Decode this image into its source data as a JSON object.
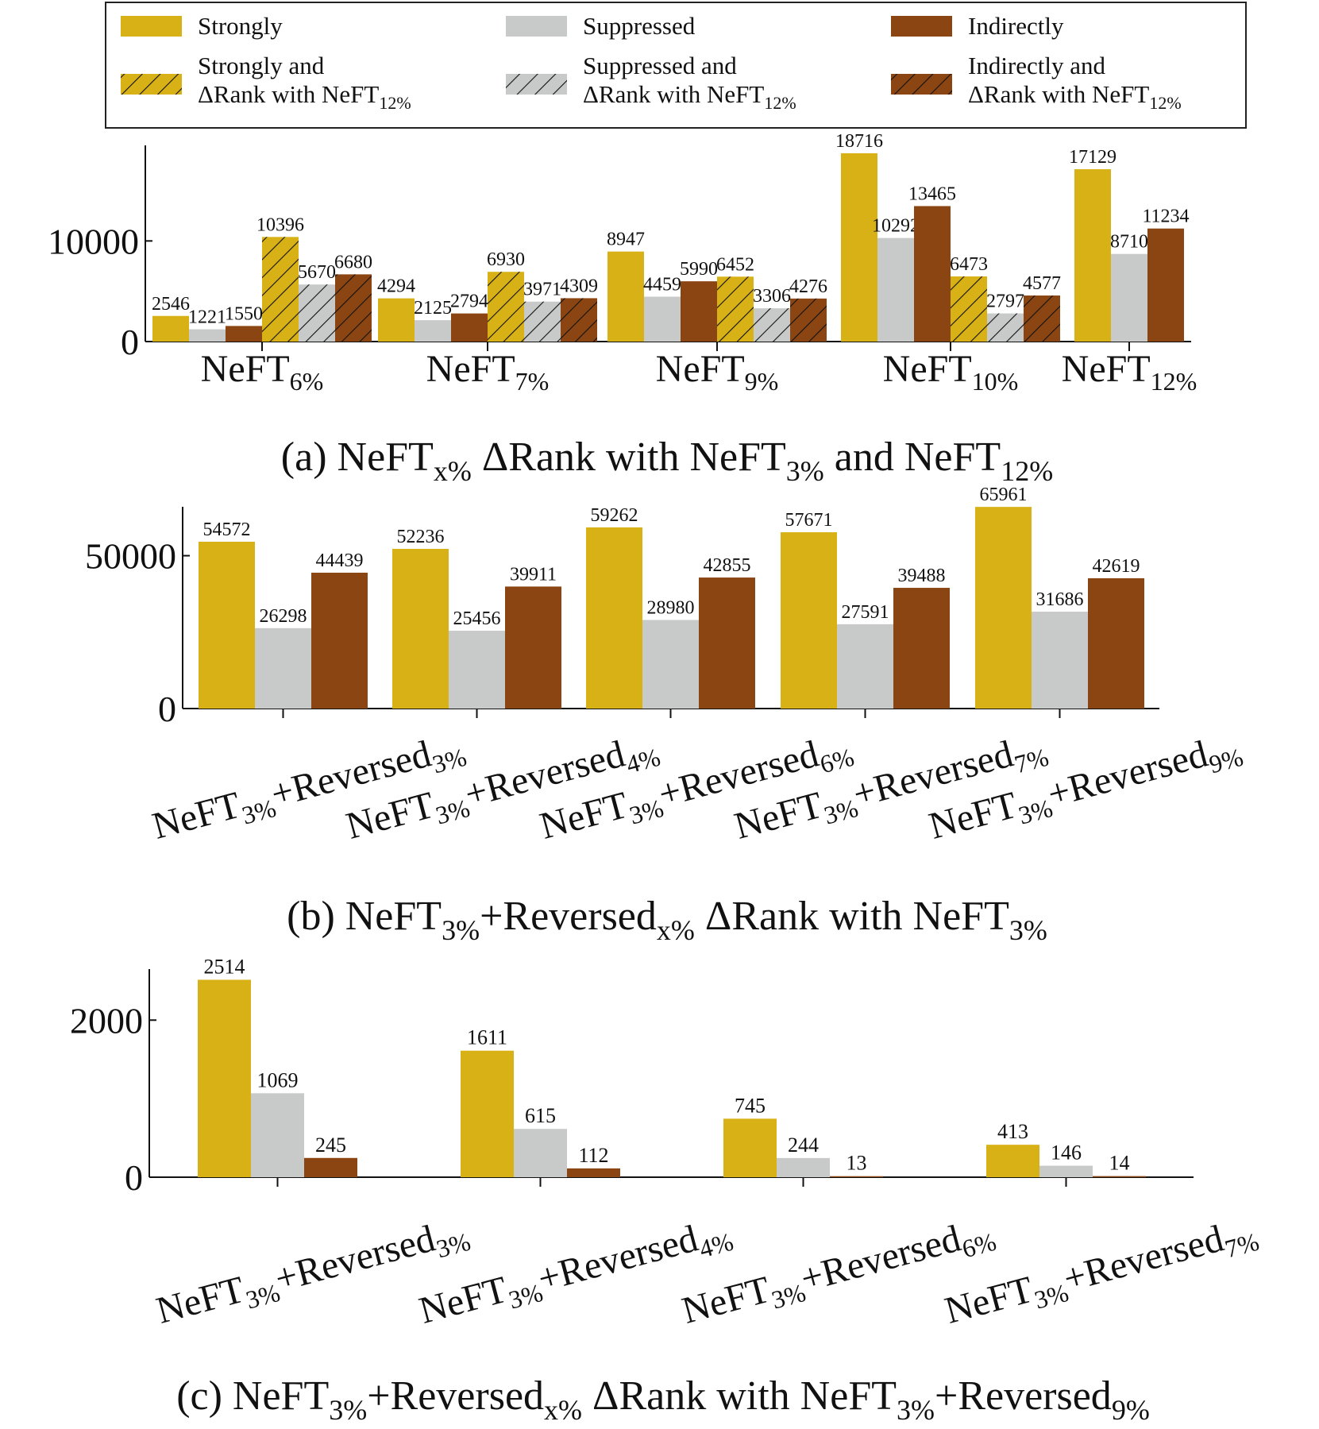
{
  "colors": {
    "strongly": "#D8B116",
    "suppressed": "#C8CACA",
    "indirectly": "#8B4513"
  },
  "legend": {
    "items": [
      {
        "key": "strongly",
        "lines": [
          "Strongly"
        ],
        "sub": "",
        "hatched": false
      },
      {
        "key": "suppressed",
        "lines": [
          "Suppressed"
        ],
        "sub": "",
        "hatched": false
      },
      {
        "key": "indirectly",
        "lines": [
          "Indirectly"
        ],
        "sub": "",
        "hatched": false
      },
      {
        "key": "strongly",
        "lines": [
          "Strongly and",
          "ΔRank with NeFT"
        ],
        "sub": "12%",
        "hatched": true
      },
      {
        "key": "suppressed",
        "lines": [
          "Suppressed and",
          "ΔRank with NeFT"
        ],
        "sub": "12%",
        "hatched": true
      },
      {
        "key": "indirectly",
        "lines": [
          "Indirectly and",
          "ΔRank with NeFT"
        ],
        "sub": "12%",
        "hatched": true
      }
    ]
  },
  "chart_data": [
    {
      "type": "bar",
      "caption": {
        "parts": [
          [
            "(a) NeFT",
            ""
          ],
          [
            "x%",
            "sub"
          ],
          [
            " ΔRank with NeFT",
            ""
          ],
          [
            "3%",
            "sub"
          ],
          [
            " and NeFT",
            ""
          ],
          [
            "12%",
            "sub"
          ]
        ]
      },
      "ylim": [
        0,
        19500
      ],
      "yticks": [
        0,
        10000
      ],
      "groups": [
        {
          "base": "NeFT",
          "sub": "6%",
          "bars": [
            {
              "key": "strongly",
              "value": 2546,
              "hatched": false
            },
            {
              "key": "suppressed",
              "value": 1221,
              "hatched": false
            },
            {
              "key": "indirectly",
              "value": 1550,
              "hatched": false
            },
            {
              "key": "strongly",
              "value": 10396,
              "hatched": true
            },
            {
              "key": "suppressed",
              "value": 5670,
              "hatched": true
            },
            {
              "key": "indirectly",
              "value": 6680,
              "hatched": true
            }
          ]
        },
        {
          "base": "NeFT",
          "sub": "7%",
          "bars": [
            {
              "key": "strongly",
              "value": 4294,
              "hatched": false
            },
            {
              "key": "suppressed",
              "value": 2125,
              "hatched": false
            },
            {
              "key": "indirectly",
              "value": 2794,
              "hatched": false
            },
            {
              "key": "strongly",
              "value": 6930,
              "hatched": true
            },
            {
              "key": "suppressed",
              "value": 3971,
              "hatched": true
            },
            {
              "key": "indirectly",
              "value": 4309,
              "hatched": true
            }
          ]
        },
        {
          "base": "NeFT",
          "sub": "9%",
          "bars": [
            {
              "key": "strongly",
              "value": 8947,
              "hatched": false
            },
            {
              "key": "suppressed",
              "value": 4459,
              "hatched": false
            },
            {
              "key": "indirectly",
              "value": 5990,
              "hatched": false
            },
            {
              "key": "strongly",
              "value": 6452,
              "hatched": true
            },
            {
              "key": "suppressed",
              "value": 3306,
              "hatched": true
            },
            {
              "key": "indirectly",
              "value": 4276,
              "hatched": true
            }
          ]
        },
        {
          "base": "NeFT",
          "sub": "10%",
          "bars": [
            {
              "key": "strongly",
              "value": 18716,
              "hatched": false
            },
            {
              "key": "suppressed",
              "value": 10292,
              "hatched": false
            },
            {
              "key": "indirectly",
              "value": 13465,
              "hatched": false
            },
            {
              "key": "strongly",
              "value": 6473,
              "hatched": true
            },
            {
              "key": "suppressed",
              "value": 2797,
              "hatched": true
            },
            {
              "key": "indirectly",
              "value": 4577,
              "hatched": true
            }
          ]
        },
        {
          "base": "NeFT",
          "sub": "12%",
          "bars": [
            {
              "key": "strongly",
              "value": 17129,
              "hatched": false
            },
            {
              "key": "suppressed",
              "value": 8710,
              "hatched": false
            },
            {
              "key": "indirectly",
              "value": 11234,
              "hatched": false
            }
          ]
        }
      ]
    },
    {
      "type": "bar",
      "caption": {
        "parts": [
          [
            "(b) NeFT",
            ""
          ],
          [
            "3%",
            "sub"
          ],
          [
            "+Reversed",
            ""
          ],
          [
            "x%",
            "sub"
          ],
          [
            " ΔRank with NeFT",
            ""
          ],
          [
            "3%",
            "sub"
          ]
        ]
      },
      "ylim": [
        0,
        66000
      ],
      "yticks": [
        0,
        50000
      ],
      "groups": [
        {
          "parts": [
            [
              "NeFT",
              ""
            ],
            [
              "3%",
              "sub"
            ],
            [
              "+Reversed",
              ""
            ],
            [
              "3%",
              "sub"
            ]
          ],
          "bars": [
            {
              "key": "strongly",
              "value": 54572
            },
            {
              "key": "suppressed",
              "value": 26298
            },
            {
              "key": "indirectly",
              "value": 44439
            }
          ]
        },
        {
          "parts": [
            [
              "NeFT",
              ""
            ],
            [
              "3%",
              "sub"
            ],
            [
              "+Reversed",
              ""
            ],
            [
              "4%",
              "sub"
            ]
          ],
          "bars": [
            {
              "key": "strongly",
              "value": 52236
            },
            {
              "key": "suppressed",
              "value": 25456
            },
            {
              "key": "indirectly",
              "value": 39911
            }
          ]
        },
        {
          "parts": [
            [
              "NeFT",
              ""
            ],
            [
              "3%",
              "sub"
            ],
            [
              "+Reversed",
              ""
            ],
            [
              "6%",
              "sub"
            ]
          ],
          "bars": [
            {
              "key": "strongly",
              "value": 59262
            },
            {
              "key": "suppressed",
              "value": 28980
            },
            {
              "key": "indirectly",
              "value": 42855
            }
          ]
        },
        {
          "parts": [
            [
              "NeFT",
              ""
            ],
            [
              "3%",
              "sub"
            ],
            [
              "+Reversed",
              ""
            ],
            [
              "7%",
              "sub"
            ]
          ],
          "bars": [
            {
              "key": "strongly",
              "value": 57671
            },
            {
              "key": "suppressed",
              "value": 27591
            },
            {
              "key": "indirectly",
              "value": 39488
            }
          ]
        },
        {
          "parts": [
            [
              "NeFT",
              ""
            ],
            [
              "3%",
              "sub"
            ],
            [
              "+Reversed",
              ""
            ],
            [
              "9%",
              "sub"
            ]
          ],
          "bars": [
            {
              "key": "strongly",
              "value": 65961
            },
            {
              "key": "suppressed",
              "value": 31686
            },
            {
              "key": "indirectly",
              "value": 42619
            }
          ]
        }
      ]
    },
    {
      "type": "bar",
      "caption": {
        "parts": [
          [
            "(c) NeFT",
            ""
          ],
          [
            "3%",
            "sub"
          ],
          [
            "+Reversed",
            ""
          ],
          [
            "x%",
            "sub"
          ],
          [
            " ΔRank with NeFT",
            ""
          ],
          [
            "3%",
            "sub"
          ],
          [
            "+Reversed",
            ""
          ],
          [
            "9%",
            "sub"
          ]
        ]
      },
      "ylim": [
        0,
        2650
      ],
      "yticks": [
        0,
        2000
      ],
      "groups": [
        {
          "parts": [
            [
              "NeFT",
              ""
            ],
            [
              "3%",
              "sub"
            ],
            [
              "+Reversed",
              ""
            ],
            [
              "3%",
              "sub"
            ]
          ],
          "bars": [
            {
              "key": "strongly",
              "value": 2514
            },
            {
              "key": "suppressed",
              "value": 1069
            },
            {
              "key": "indirectly",
              "value": 245
            }
          ]
        },
        {
          "parts": [
            [
              "NeFT",
              ""
            ],
            [
              "3%",
              "sub"
            ],
            [
              "+Reversed",
              ""
            ],
            [
              "4%",
              "sub"
            ]
          ],
          "bars": [
            {
              "key": "strongly",
              "value": 1611
            },
            {
              "key": "suppressed",
              "value": 615
            },
            {
              "key": "indirectly",
              "value": 112
            }
          ]
        },
        {
          "parts": [
            [
              "NeFT",
              ""
            ],
            [
              "3%",
              "sub"
            ],
            [
              "+Reversed",
              ""
            ],
            [
              "6%",
              "sub"
            ]
          ],
          "bars": [
            {
              "key": "strongly",
              "value": 745
            },
            {
              "key": "suppressed",
              "value": 244
            },
            {
              "key": "indirectly",
              "value": 13
            }
          ]
        },
        {
          "parts": [
            [
              "NeFT",
              ""
            ],
            [
              "3%",
              "sub"
            ],
            [
              "+Reversed",
              ""
            ],
            [
              "7%",
              "sub"
            ]
          ],
          "bars": [
            {
              "key": "strongly",
              "value": 413
            },
            {
              "key": "suppressed",
              "value": 146
            },
            {
              "key": "indirectly",
              "value": 14
            }
          ]
        }
      ]
    }
  ]
}
